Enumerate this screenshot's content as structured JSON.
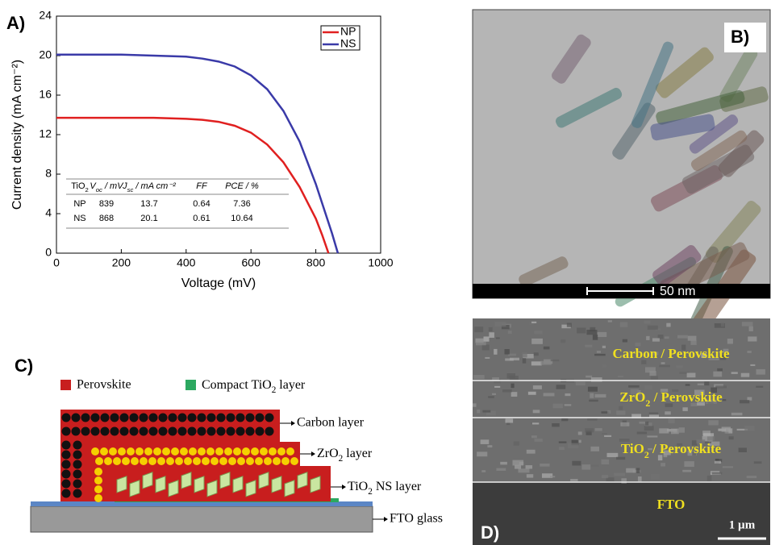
{
  "panels": {
    "A": "A)",
    "B": "B)",
    "C": "C)",
    "D": "D)"
  },
  "chart_data": {
    "type": "line",
    "xlabel": "Voltage (mV)",
    "ylabel": "Current density (mA cm⁻²)",
    "xlim": [
      0,
      1000
    ],
    "xticks": [
      0,
      200,
      400,
      600,
      800,
      1000
    ],
    "ylim": [
      0,
      24
    ],
    "yticks": [
      0,
      4,
      8,
      12,
      16,
      20,
      24
    ],
    "legend": "upper right",
    "series": [
      {
        "name": "NP",
        "color": "#e02020",
        "x": [
          0,
          100,
          200,
          300,
          400,
          450,
          500,
          550,
          600,
          650,
          700,
          750,
          800,
          820,
          839
        ],
        "values": [
          13.7,
          13.7,
          13.7,
          13.7,
          13.6,
          13.5,
          13.3,
          12.9,
          12.2,
          11.0,
          9.2,
          6.7,
          3.5,
          1.8,
          0
        ]
      },
      {
        "name": "NS",
        "color": "#3a3aa8",
        "x": [
          0,
          100,
          200,
          300,
          400,
          450,
          500,
          550,
          600,
          650,
          700,
          750,
          800,
          830,
          850,
          868
        ],
        "values": [
          20.1,
          20.1,
          20.1,
          20.0,
          19.9,
          19.7,
          19.4,
          18.9,
          18.0,
          16.6,
          14.4,
          11.3,
          7.0,
          4.0,
          2.0,
          0
        ]
      }
    ],
    "table": {
      "header": [
        {
          "text": "TiO",
          "sub": "2"
        },
        {
          "text": "V",
          "sub": "oc",
          "after": " / mV"
        },
        {
          "text": "J",
          "sub": "sc",
          "after": " / mA cm⁻²"
        },
        "FF",
        "PCE / %"
      ],
      "rows": [
        [
          "NP",
          839,
          13.7,
          0.64,
          7.36
        ],
        [
          "NS",
          868,
          20.1,
          0.61,
          10.64
        ]
      ]
    }
  },
  "tem_image": {
    "scale_bar": "50 nm"
  },
  "schematic": {
    "legend": [
      "Perovskite",
      {
        "text": "Compact TiO",
        "sub": "2",
        "after": " layer"
      }
    ],
    "layers": [
      "Carbon layer",
      {
        "text": "ZrO",
        "sub": "2",
        "after": " layer"
      },
      {
        "text": "TiO",
        "sub": "2",
        "after": " NS layer"
      },
      "FTO glass"
    ]
  },
  "sem_image": {
    "layers": [
      {
        "text": "Carbon / Perovskite"
      },
      {
        "text": "ZrO",
        "sub": "2",
        "after": " / Perovskite"
      },
      {
        "text": "TiO",
        "sub": "2",
        "after": " / Perovskite"
      },
      {
        "text": "FTO"
      }
    ],
    "scale_bar": "1 µm"
  }
}
